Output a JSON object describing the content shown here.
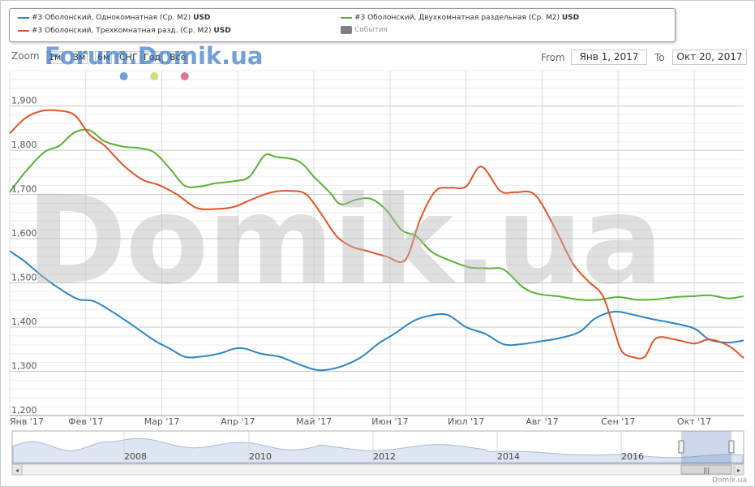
{
  "legend": {
    "items": [
      {
        "label": "#3 Оболонский, Однокомнатная (Ср. М2)",
        "unit": "USD",
        "color": "#2b86c5"
      },
      {
        "label": "#3 Оболонский, Двухкомнатная раздельная (Ср. М2)",
        "unit": "USD",
        "color": "#5ab332"
      },
      {
        "label": "#3 Оболонский, Трехкомнатная разд. (Ср. М2)",
        "unit": "USD",
        "color": "#e0542a"
      }
    ],
    "events_label": "События"
  },
  "range_selector": {
    "zoom_label": "Zoom",
    "buttons": [
      "1м",
      "3м",
      "6м",
      "СНГ",
      "Год",
      "Все"
    ],
    "from_label": "From",
    "from_value": "Янв 1, 2017",
    "to_label": "To",
    "to_value": "Окт 20, 2017"
  },
  "watermarks": {
    "top": "Forum.Domik.ua",
    "big": "Domik.ua"
  },
  "credit": "Domik.ua",
  "chart_data": {
    "type": "line",
    "ylim": [
      1200,
      1980
    ],
    "y_ticks": [
      1200,
      1300,
      1400,
      1500,
      1600,
      1700,
      1800,
      1900
    ],
    "y_tick_labels": [
      "1,200",
      "1,300",
      "1,400",
      "1,500",
      "1,600",
      "1,700",
      "1,800",
      "1,900"
    ],
    "x_range": [
      0,
      9.65
    ],
    "x_ticks": [
      0,
      1,
      2,
      3,
      4,
      5,
      6,
      7,
      8,
      9
    ],
    "x_tick_labels": [
      "Янв '17",
      "Фев '17",
      "Мар '17",
      "Апр '17",
      "Май '17",
      "Июн '17",
      "Июл '17",
      "Авг '17",
      "Сен '17",
      "Окт '17"
    ],
    "event_markers": [
      {
        "x": 1.5,
        "color": "#6f9fd8"
      },
      {
        "x": 1.9,
        "color": "#d2dc7a"
      },
      {
        "x": 2.3,
        "color": "#d9788f"
      }
    ],
    "series": [
      {
        "name": "#3 Оболонский, Однокомнатная (Ср. М2)",
        "color": "#2b86c5",
        "x": [
          0,
          0.2,
          0.45,
          0.7,
          0.9,
          1.1,
          1.3,
          1.6,
          1.9,
          2.1,
          2.3,
          2.5,
          2.75,
          2.95,
          3.1,
          3.3,
          3.55,
          3.8,
          4.05,
          4.3,
          4.6,
          4.85,
          5.05,
          5.3,
          5.5,
          5.75,
          6.0,
          6.25,
          6.5,
          6.75,
          6.95,
          7.25,
          7.5,
          7.7,
          7.95,
          8.2,
          8.45,
          8.7,
          9.0,
          9.2,
          9.45,
          9.65
        ],
        "y": [
          1572,
          1548,
          1512,
          1482,
          1463,
          1459,
          1440,
          1406,
          1370,
          1352,
          1333,
          1333,
          1340,
          1351,
          1351,
          1340,
          1333,
          1316,
          1303,
          1308,
          1330,
          1363,
          1384,
          1413,
          1425,
          1428,
          1400,
          1385,
          1361,
          1362,
          1367,
          1376,
          1390,
          1420,
          1435,
          1428,
          1418,
          1410,
          1397,
          1372,
          1365,
          1370
        ]
      },
      {
        "name": "#3 Оболонский, Двухкомнатная раздельная (Ср. М2)",
        "color": "#5ab332",
        "x": [
          0,
          0.2,
          0.45,
          0.65,
          0.85,
          1.05,
          1.25,
          1.5,
          1.7,
          1.9,
          2.1,
          2.3,
          2.5,
          2.7,
          2.95,
          3.15,
          3.35,
          3.5,
          3.8,
          4.0,
          4.2,
          4.35,
          4.55,
          4.75,
          4.95,
          5.15,
          5.35,
          5.55,
          5.8,
          6.05,
          6.3,
          6.5,
          6.75,
          6.95,
          7.2,
          7.5,
          7.75,
          8.0,
          8.25,
          8.5,
          8.75,
          9.0,
          9.2,
          9.45,
          9.65
        ],
        "y": [
          1705,
          1750,
          1795,
          1810,
          1840,
          1845,
          1820,
          1808,
          1805,
          1795,
          1760,
          1720,
          1718,
          1725,
          1730,
          1740,
          1788,
          1785,
          1775,
          1740,
          1706,
          1678,
          1688,
          1690,
          1665,
          1620,
          1605,
          1570,
          1550,
          1535,
          1533,
          1530,
          1490,
          1475,
          1470,
          1462,
          1462,
          1468,
          1462,
          1463,
          1468,
          1470,
          1472,
          1465,
          1470
        ]
      },
      {
        "name": "#3 Оболонский, Трехкомнатная разд. (Ср. М2)",
        "color": "#e0542a",
        "x": [
          0,
          0.2,
          0.4,
          0.6,
          0.85,
          1.05,
          1.25,
          1.5,
          1.75,
          1.95,
          2.2,
          2.45,
          2.7,
          2.95,
          3.2,
          3.45,
          3.7,
          3.9,
          4.1,
          4.3,
          4.5,
          4.7,
          4.95,
          5.2,
          5.4,
          5.6,
          5.8,
          6.0,
          6.2,
          6.45,
          6.65,
          6.9,
          7.15,
          7.4,
          7.6,
          7.8,
          7.95,
          8.05,
          8.2,
          8.35,
          8.5,
          8.75,
          9.0,
          9.2,
          9.45,
          9.65
        ],
        "y": [
          1838,
          1872,
          1888,
          1890,
          1880,
          1835,
          1810,
          1765,
          1733,
          1722,
          1700,
          1670,
          1667,
          1672,
          1690,
          1705,
          1708,
          1700,
          1655,
          1605,
          1582,
          1572,
          1560,
          1552,
          1645,
          1708,
          1715,
          1718,
          1763,
          1708,
          1705,
          1700,
          1630,
          1545,
          1505,
          1470,
          1392,
          1345,
          1332,
          1333,
          1375,
          1372,
          1363,
          1372,
          1358,
          1330
        ]
      }
    ]
  },
  "navigator": {
    "year_labels": [
      "2008",
      "2010",
      "2012",
      "2014",
      "2016"
    ]
  }
}
